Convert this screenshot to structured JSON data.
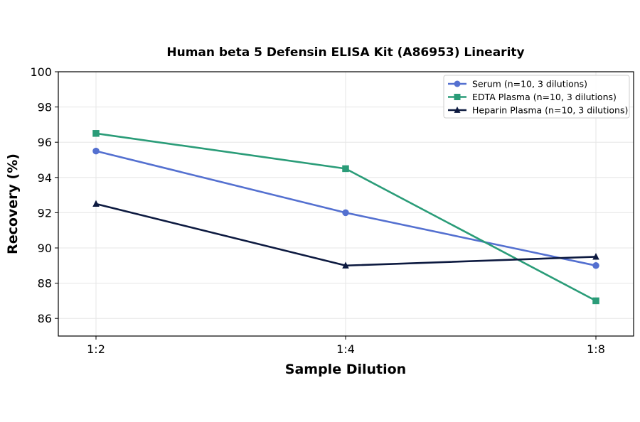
{
  "chart_data": {
    "type": "line",
    "title": "Human beta 5 Defensin ELISA Kit (A86953) Linearity",
    "xlabel": "Sample Dilution",
    "ylabel": "Recovery (%)",
    "categories": [
      "1:2",
      "1:4",
      "1:8"
    ],
    "ylim": [
      85,
      100
    ],
    "yticks": [
      86,
      88,
      90,
      92,
      94,
      96,
      98,
      100
    ],
    "grid": true,
    "legend_position": "top-right",
    "series": [
      {
        "name": "Serum (n=10, 3 dilutions)",
        "values": [
          95.5,
          92.0,
          89.0
        ],
        "color": "#5470d0",
        "marker": "circle"
      },
      {
        "name": "EDTA Plasma (n=10, 3 dilutions)",
        "values": [
          96.5,
          94.5,
          87.0
        ],
        "color": "#2a9c78",
        "marker": "square"
      },
      {
        "name": "Heparin Plasma (n=10, 3 dilutions)",
        "values": [
          92.5,
          89.0,
          89.5
        ],
        "color": "#0d1a40",
        "marker": "triangle"
      }
    ]
  }
}
